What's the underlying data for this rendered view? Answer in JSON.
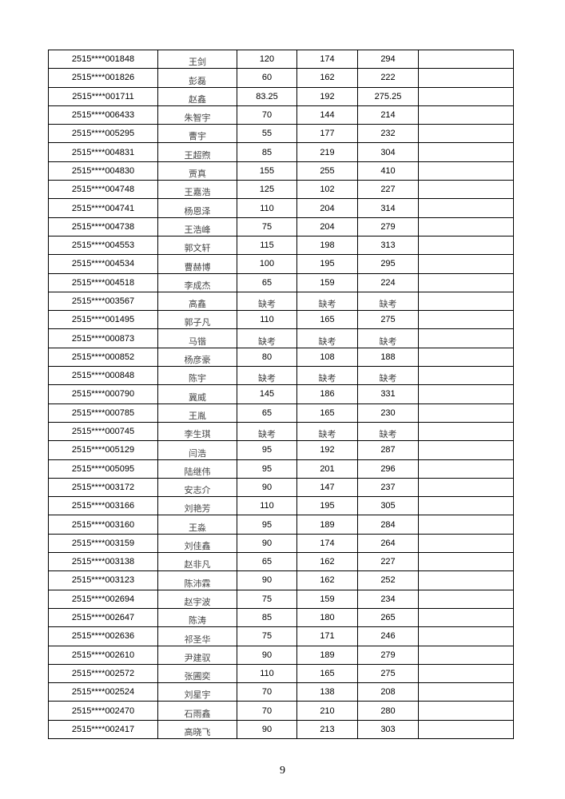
{
  "rows": [
    [
      "2515****001848",
      "王剑",
      "120",
      "174",
      "294",
      ""
    ],
    [
      "2515****001826",
      "彭磊",
      "60",
      "162",
      "222",
      ""
    ],
    [
      "2515****001711",
      "赵鑫",
      "83.25",
      "192",
      "275.25",
      ""
    ],
    [
      "2515****006433",
      "朱智宇",
      "70",
      "144",
      "214",
      ""
    ],
    [
      "2515****005295",
      "曹宇",
      "55",
      "177",
      "232",
      ""
    ],
    [
      "2515****004831",
      "王超煦",
      "85",
      "219",
      "304",
      ""
    ],
    [
      "2515****004830",
      "贾真",
      "155",
      "255",
      "410",
      ""
    ],
    [
      "2515****004748",
      "王嘉浩",
      "125",
      "102",
      "227",
      ""
    ],
    [
      "2515****004741",
      "杨恩泽",
      "110",
      "204",
      "314",
      ""
    ],
    [
      "2515****004738",
      "王浩峰",
      "75",
      "204",
      "279",
      ""
    ],
    [
      "2515****004553",
      "郭文轩",
      "115",
      "198",
      "313",
      ""
    ],
    [
      "2515****004534",
      "曹赫博",
      "100",
      "195",
      "295",
      ""
    ],
    [
      "2515****004518",
      "李成杰",
      "65",
      "159",
      "224",
      ""
    ],
    [
      "2515****003567",
      "高鑫",
      "缺考",
      "缺考",
      "缺考",
      ""
    ],
    [
      "2515****001495",
      "郭子凡",
      "110",
      "165",
      "275",
      ""
    ],
    [
      "2515****000873",
      "马锴",
      "缺考",
      "缺考",
      "缺考",
      ""
    ],
    [
      "2515****000852",
      "杨彦豪",
      "80",
      "108",
      "188",
      ""
    ],
    [
      "2515****000848",
      "陈宇",
      "缺考",
      "缺考",
      "缺考",
      ""
    ],
    [
      "2515****000790",
      "冀威",
      "145",
      "186",
      "331",
      ""
    ],
    [
      "2515****000785",
      "王胤",
      "65",
      "165",
      "230",
      ""
    ],
    [
      "2515****000745",
      "李生琪",
      "缺考",
      "缺考",
      "缺考",
      ""
    ],
    [
      "2515****005129",
      "闫浩",
      "95",
      "192",
      "287",
      ""
    ],
    [
      "2515****005095",
      "陆继伟",
      "95",
      "201",
      "296",
      ""
    ],
    [
      "2515****003172",
      "安志介",
      "90",
      "147",
      "237",
      ""
    ],
    [
      "2515****003166",
      "刘艳芳",
      "110",
      "195",
      "305",
      ""
    ],
    [
      "2515****003160",
      "王淼",
      "95",
      "189",
      "284",
      ""
    ],
    [
      "2515****003159",
      "刘佳鑫",
      "90",
      "174",
      "264",
      ""
    ],
    [
      "2515****003138",
      "赵非凡",
      "65",
      "162",
      "227",
      ""
    ],
    [
      "2515****003123",
      "陈沛霖",
      "90",
      "162",
      "252",
      ""
    ],
    [
      "2515****002694",
      "赵宇波",
      "75",
      "159",
      "234",
      ""
    ],
    [
      "2515****002647",
      "陈涛",
      "85",
      "180",
      "265",
      ""
    ],
    [
      "2515****002636",
      "祁圣华",
      "75",
      "171",
      "246",
      ""
    ],
    [
      "2515****002610",
      "尹建驭",
      "90",
      "189",
      "279",
      ""
    ],
    [
      "2515****002572",
      "张圃奕",
      "110",
      "165",
      "275",
      ""
    ],
    [
      "2515****002524",
      "刘星宇",
      "70",
      "138",
      "208",
      ""
    ],
    [
      "2515****002470",
      "石雨鑫",
      "70",
      "210",
      "280",
      ""
    ],
    [
      "2515****002417",
      "高晓飞",
      "90",
      "213",
      "303",
      ""
    ]
  ],
  "page_number": "9"
}
